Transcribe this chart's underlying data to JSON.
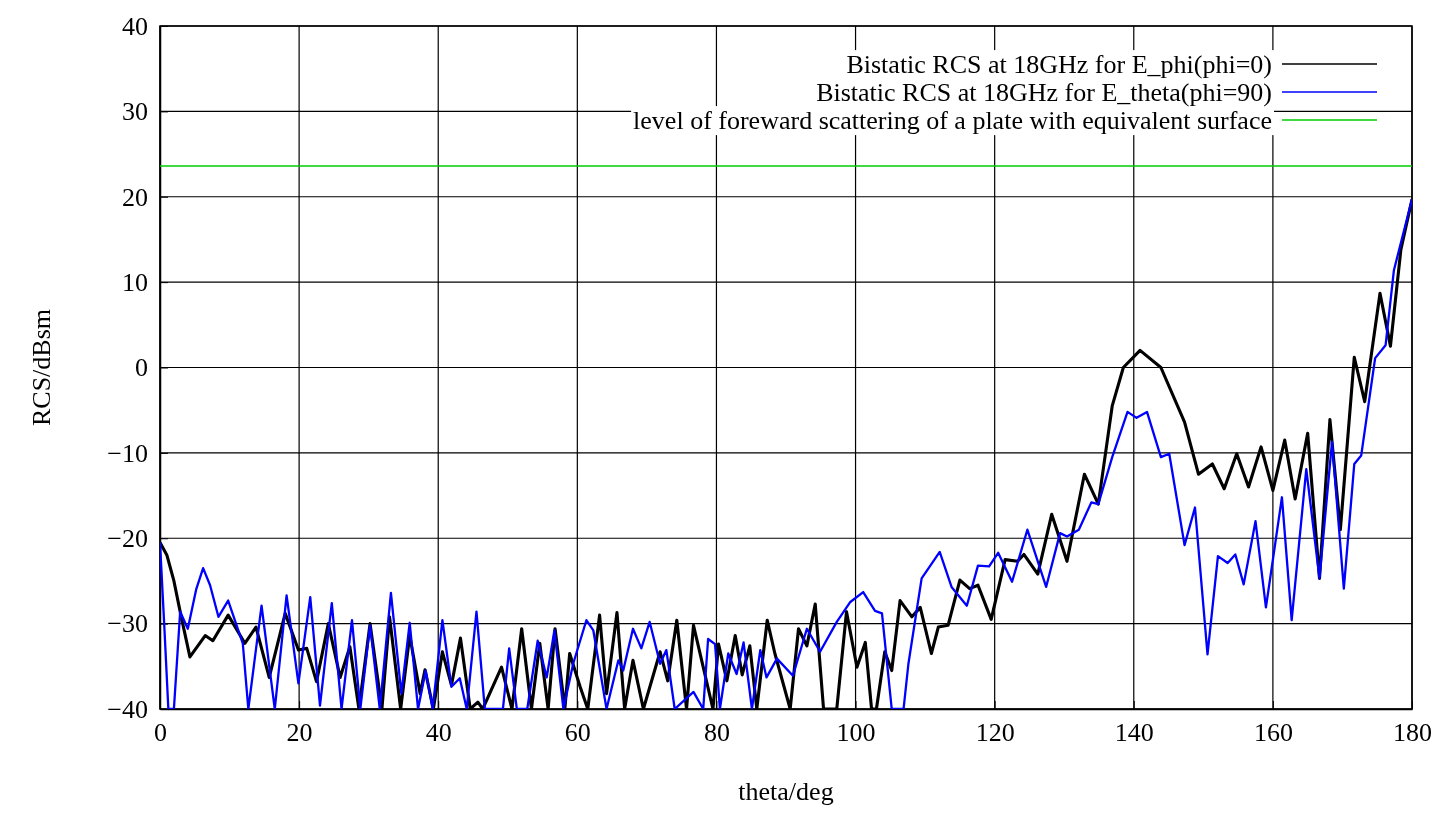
{
  "chart_data": {
    "type": "line",
    "xlabel": "theta/deg",
    "ylabel": "RCS/dBsm",
    "xlim": [
      0,
      180
    ],
    "ylim": [
      -40,
      40
    ],
    "xticks": [
      0,
      20,
      40,
      60,
      80,
      100,
      120,
      140,
      160,
      180
    ],
    "yticks": [
      -40,
      -30,
      -20,
      -10,
      0,
      10,
      20,
      30,
      40
    ],
    "grid": true,
    "legend": "top right",
    "marker": "none",
    "line_style": "solid",
    "series": [
      {
        "name": "Bistatic RCS at 18GHz for E_phi(phi=0)",
        "color": "#000000",
        "x": [
          0,
          1,
          2,
          3,
          4.3,
          6.5,
          7.6,
          9.8,
          12.2,
          13.8,
          15.7,
          18,
          19.9,
          21.1,
          22.5,
          24.2,
          25.9,
          27.3,
          28.6,
          30.2,
          31.9,
          33,
          34.6,
          35.9,
          37.4,
          38.1,
          39.3,
          40.6,
          41.9,
          43.2,
          44.6,
          45.7,
          46.4,
          49.1,
          50.6,
          52,
          53.4,
          54.6,
          55.8,
          56.8,
          58.2,
          58.9,
          60.4,
          61.5,
          63.2,
          64.2,
          65.7,
          66.8,
          68,
          69.5,
          71.9,
          73,
          74.3,
          75.7,
          76.7,
          78.1,
          79.5,
          80.3,
          81.5,
          82.7,
          83.7,
          84.8,
          85.8,
          87.3,
          88.4,
          90.6,
          91.8,
          93,
          94.2,
          95.4,
          97.3,
          98.7,
          100.2,
          101.4,
          102.3,
          103,
          104.2,
          105.2,
          106.4,
          108.1,
          109.3,
          110.9,
          111.9,
          113.3,
          115,
          116.4,
          117.6,
          119.5,
          121.5,
          123.3,
          124.2,
          126.2,
          128.2,
          130.4,
          132.9,
          134.9,
          136.9,
          138.5,
          140.9,
          143.9,
          147.3,
          149.3,
          151.3,
          153,
          154.8,
          156.5,
          158.3,
          160,
          161.7,
          163.2,
          165,
          166.7,
          168.2,
          169.7,
          171.7,
          173.2,
          175.4,
          176.9,
          178.4,
          180
        ],
        "values": [
          -20.5,
          -22,
          -25,
          -29,
          -33.9,
          -31.4,
          -32,
          -29,
          -32.3,
          -30.4,
          -36.3,
          -28.8,
          -33.1,
          -32.9,
          -36.8,
          -30,
          -36.3,
          -32.7,
          -40,
          -30,
          -40,
          -29.2,
          -40,
          -31.4,
          -38.2,
          -35.4,
          -40,
          -33.3,
          -37.2,
          -31.7,
          -40,
          -39.2,
          -40,
          -35.1,
          -40,
          -30.6,
          -40,
          -32.3,
          -40,
          -30.6,
          -40,
          -33.5,
          -37.4,
          -40,
          -29,
          -38.2,
          -28.7,
          -40,
          -34.3,
          -40,
          -33.3,
          -36.7,
          -29.6,
          -40,
          -30.2,
          -35.1,
          -40,
          -32.4,
          -36.7,
          -31.4,
          -36,
          -32.6,
          -40,
          -29.6,
          -33.5,
          -40,
          -30.6,
          -32.6,
          -27.7,
          -40,
          -40,
          -28.6,
          -35.1,
          -32.2,
          -40,
          -40,
          -33.3,
          -35.5,
          -27.3,
          -29.2,
          -28.1,
          -33.5,
          -30.4,
          -30.2,
          -24.9,
          -25.9,
          -25.5,
          -29.5,
          -22.5,
          -22.7,
          -21.9,
          -24.2,
          -17.2,
          -22.7,
          -12.5,
          -16,
          -4.5,
          0,
          2,
          0,
          -6.4,
          -12.5,
          -11.3,
          -14.2,
          -10.1,
          -14,
          -9.3,
          -14.4,
          -8.5,
          -15.4,
          -7.7,
          -24.7,
          -6.1,
          -19,
          1.2,
          -4,
          8.7,
          2.5,
          13.8,
          19.7
        ]
      },
      {
        "name": "Bistatic RCS at 18GHz for E_theta(phi=90)",
        "color": "#0000ff",
        "x": [
          0,
          0.6,
          1.2,
          2,
          2.9,
          4,
          5.2,
          6.2,
          7.2,
          8.4,
          9.8,
          11.9,
          12.7,
          14.6,
          16.5,
          18.2,
          19.9,
          21.6,
          23,
          24.7,
          26.1,
          27.6,
          28.8,
          30.2,
          31.6,
          33.2,
          34.7,
          35.9,
          37.1,
          38.2,
          39.2,
          40.6,
          41.9,
          43.1,
          44.1,
          45.5,
          46.7,
          49.3,
          50.2,
          51.3,
          52.8,
          54.3,
          55.6,
          56.7,
          58,
          59.4,
          61.3,
          62.3,
          64.2,
          65.9,
          66.6,
          68,
          69.2,
          70.4,
          71.9,
          72.8,
          74,
          76.7,
          78.1,
          78.8,
          79.8,
          80.5,
          81.7,
          82.9,
          83.9,
          85.1,
          86.3,
          87.2,
          88.7,
          91,
          93,
          94.9,
          97.3,
          99.2,
          101.1,
          102.8,
          103.8,
          105.2,
          106.9,
          107.6,
          109.5,
          112.1,
          113.8,
          116,
          117.6,
          119.2,
          120.5,
          122.5,
          124.7,
          127.4,
          129.4,
          130.4,
          132.1,
          133.9,
          134.9,
          136.9,
          139.1,
          140.4,
          141.9,
          143.9,
          145.1,
          147.3,
          148.8,
          150.6,
          152.1,
          153.5,
          154.6,
          155.8,
          157.5,
          159,
          161.3,
          162.7,
          164.8,
          166.7,
          168.5,
          170.2,
          171.7,
          172.7,
          174.7,
          176.2,
          177.4,
          180
        ],
        "values": [
          -20.5,
          -30,
          -40,
          -40,
          -28.6,
          -30.6,
          -26,
          -23.5,
          -25.5,
          -29.2,
          -27.3,
          -32.3,
          -40,
          -27.9,
          -40,
          -26.7,
          -37,
          -26.9,
          -39.6,
          -27.6,
          -40,
          -29.6,
          -40,
          -30.2,
          -40,
          -26.4,
          -38.2,
          -29.9,
          -40,
          -35.5,
          -40,
          -29.6,
          -37.4,
          -36.4,
          -40,
          -28.6,
          -40,
          -40,
          -32.9,
          -40,
          -40,
          -32,
          -36.3,
          -30.8,
          -40,
          -34.7,
          -29.6,
          -30.8,
          -40,
          -34.3,
          -35.5,
          -30.6,
          -32.9,
          -29.8,
          -34.7,
          -33.1,
          -40,
          -38,
          -40,
          -31.8,
          -32.4,
          -40,
          -33.5,
          -35.9,
          -32.2,
          -40,
          -33.1,
          -36.3,
          -34.1,
          -36.1,
          -30.6,
          -33.3,
          -29.8,
          -27.5,
          -26.3,
          -28.5,
          -28.8,
          -40,
          -40,
          -34.7,
          -24.7,
          -21.6,
          -25.7,
          -27.9,
          -23.2,
          -23.3,
          -21.7,
          -25.1,
          -19,
          -25.7,
          -19.4,
          -19.8,
          -19,
          -15.8,
          -16,
          -10.5,
          -5.2,
          -5.9,
          -5.2,
          -10.5,
          -10.1,
          -20.8,
          -16.4,
          -33.6,
          -22.1,
          -22.9,
          -21.9,
          -25.4,
          -18,
          -28.1,
          -15.2,
          -29.6,
          -11.9,
          -24.7,
          -8.7,
          -25.9,
          -11.3,
          -10.3,
          1.1,
          2.6,
          11.4,
          19.7
        ]
      },
      {
        "name": "level of foreward scattering of a plate with equivalent surface",
        "color": "#00cc00",
        "x": [
          0,
          180
        ],
        "values": [
          23.6,
          23.6
        ]
      }
    ]
  }
}
